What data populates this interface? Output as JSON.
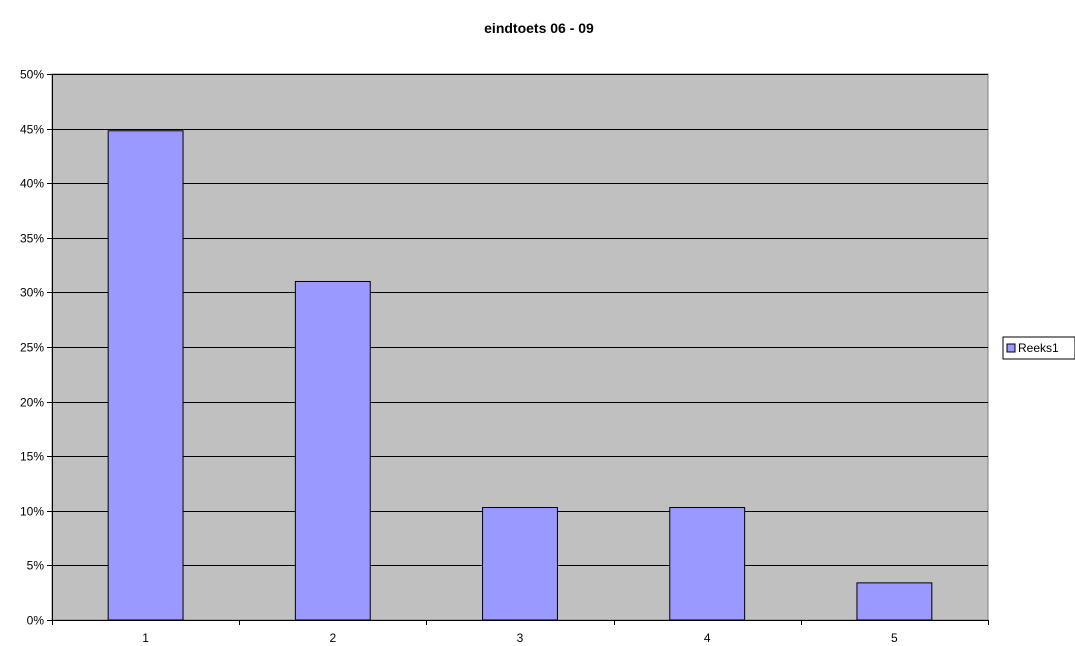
{
  "chart_data": {
    "type": "bar",
    "title": "eindtoets 06 - 09",
    "xlabel": "",
    "ylabel": "",
    "categories": [
      "1",
      "2",
      "3",
      "4",
      "5"
    ],
    "series": [
      {
        "name": "Reeks1",
        "values": [
          0.448,
          0.31,
          0.103,
          0.103,
          0.034
        ]
      }
    ],
    "ylim": [
      0,
      0.5
    ],
    "y_ticks": [
      0,
      0.05,
      0.1,
      0.15,
      0.2,
      0.25,
      0.3,
      0.35,
      0.4,
      0.45,
      0.5
    ],
    "y_tick_labels": [
      "0%",
      "5%",
      "10%",
      "15%",
      "20%",
      "25%",
      "30%",
      "35%",
      "40%",
      "45%",
      "50%"
    ],
    "grid": true,
    "legend_position": "right",
    "colors": {
      "bar_fill": "#9999ff",
      "plot_background": "#c0c0c0",
      "gridline": "#000000"
    }
  }
}
